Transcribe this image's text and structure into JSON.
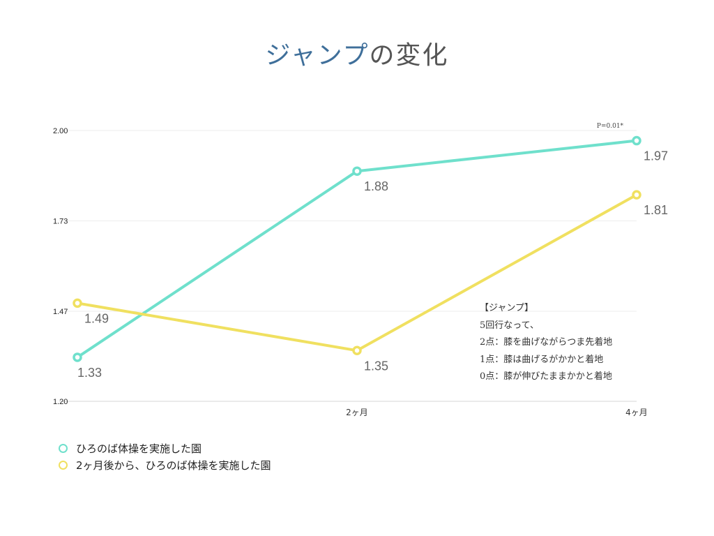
{
  "title": {
    "part1": "ジャンプ",
    "part2": "の変化"
  },
  "chart_data": {
    "type": "line",
    "categories": [
      "",
      "2ヶ月",
      "4ヶ月"
    ],
    "ylim": [
      1.2,
      2.0
    ],
    "yticks": [
      {
        "value": 1.2,
        "label": "1.20"
      },
      {
        "value": 1.466,
        "label": "1.47"
      },
      {
        "value": 1.733,
        "label": "1.73"
      },
      {
        "value": 2.0,
        "label": "2.00"
      }
    ],
    "grid": true,
    "legend_position": "bottom-left",
    "series": [
      {
        "name": "ひろのば体操を実施した園",
        "color": "#6fe0cc",
        "values": [
          1.33,
          1.88,
          1.97
        ],
        "labels": [
          "1.33",
          "1.88",
          "1.97"
        ]
      },
      {
        "name": "2ヶ月後から、ひろのば体操を実施した園",
        "color": "#f0e060",
        "values": [
          1.49,
          1.35,
          1.81
        ],
        "labels": [
          "1.49",
          "1.35",
          "1.81"
        ]
      }
    ],
    "annotations": [
      {
        "text": "P=0.01*"
      }
    ]
  },
  "note": {
    "lines": [
      "【ジャンプ】",
      "5回行なって、",
      "2点：膝を曲げながらつま先着地",
      "1点：膝は曲げるがかかと着地",
      "0点：膝が伸びたままかかと着地"
    ]
  }
}
